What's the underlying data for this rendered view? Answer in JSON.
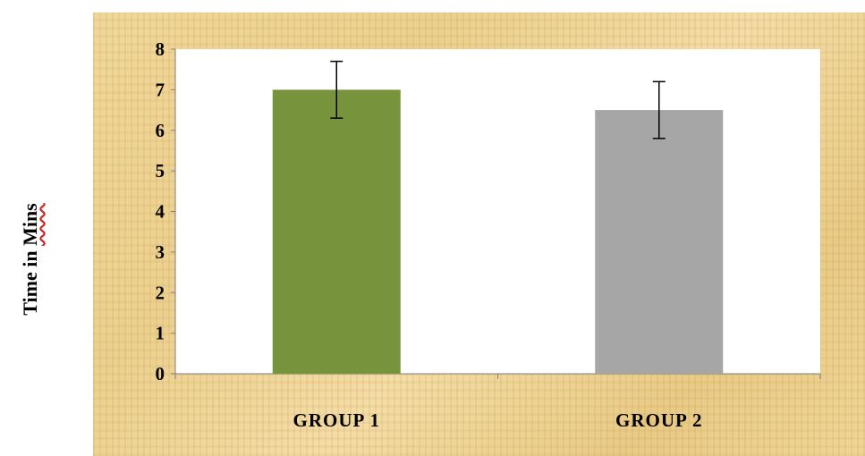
{
  "ylabel_prefix": "Time in ",
  "ylabel_word": "Mins",
  "chart_data": {
    "type": "bar",
    "categories": [
      "GROUP 1",
      "GROUP 2"
    ],
    "values": [
      7.0,
      6.5
    ],
    "errors": [
      0.7,
      0.7
    ],
    "bar_colors": [
      "#77933c",
      "#a6a6a6"
    ],
    "ylabel": "Time in Mins",
    "ylim": [
      0,
      8
    ],
    "yticks": [
      "0",
      "1",
      "2",
      "3",
      "4",
      "5",
      "6",
      "7",
      "8"
    ],
    "grid": false,
    "legend": "none",
    "background": "#ecd08f",
    "plot_area_color": "#ffffff"
  }
}
